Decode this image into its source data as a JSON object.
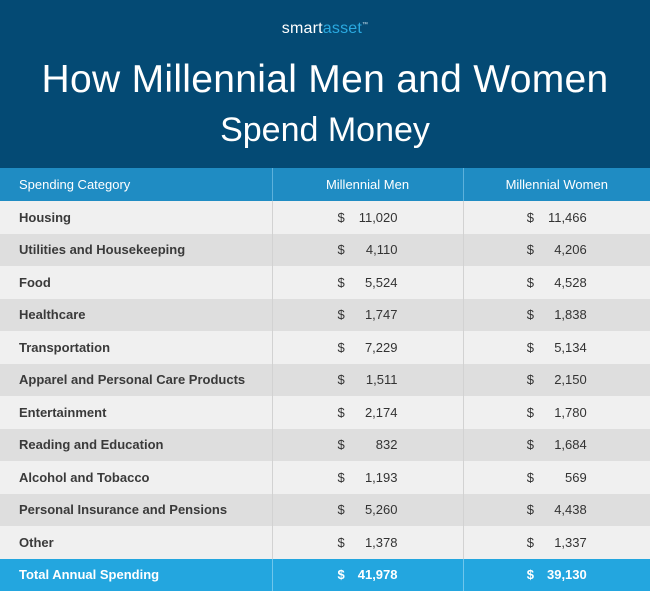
{
  "header": {
    "logo": {
      "part1": "smart",
      "part2": "asset",
      "mark": "™"
    },
    "title_line1": "How Millennial Men and Women",
    "title_line2": "Spend Money"
  },
  "table": {
    "columns": [
      "Spending Category",
      "Millennial Men",
      "Millennial Women"
    ],
    "currency_symbol": "$",
    "rows": [
      {
        "category": "Housing",
        "men": "11,020",
        "women": "11,466"
      },
      {
        "category": "Utilities and Housekeeping",
        "men": "4,110",
        "women": "4,206"
      },
      {
        "category": "Food",
        "men": "5,524",
        "women": "4,528"
      },
      {
        "category": "Healthcare",
        "men": "1,747",
        "women": "1,838"
      },
      {
        "category": "Transportation",
        "men": "7,229",
        "women": "5,134"
      },
      {
        "category": "Apparel and Personal Care Products",
        "men": "1,511",
        "women": "2,150"
      },
      {
        "category": "Entertainment",
        "men": "2,174",
        "women": "1,780"
      },
      {
        "category": "Reading and Education",
        "men": "832",
        "women": "1,684"
      },
      {
        "category": "Alcohol and Tobacco",
        "men": "1,193",
        "women": "569"
      },
      {
        "category": "Personal Insurance and Pensions",
        "men": "5,260",
        "women": "4,438"
      },
      {
        "category": "Other",
        "men": "1,378",
        "women": "1,337"
      }
    ],
    "total": {
      "category": "Total Annual Spending",
      "men": "41,978",
      "women": "39,130"
    }
  },
  "colors": {
    "hero_bg": "#044a74",
    "header_row_bg": "#1f8cc3",
    "row_light": "#f0f0f0",
    "row_dark": "#dedede",
    "total_row_bg": "#23a6df",
    "logo_accent": "#2aa9e0"
  }
}
